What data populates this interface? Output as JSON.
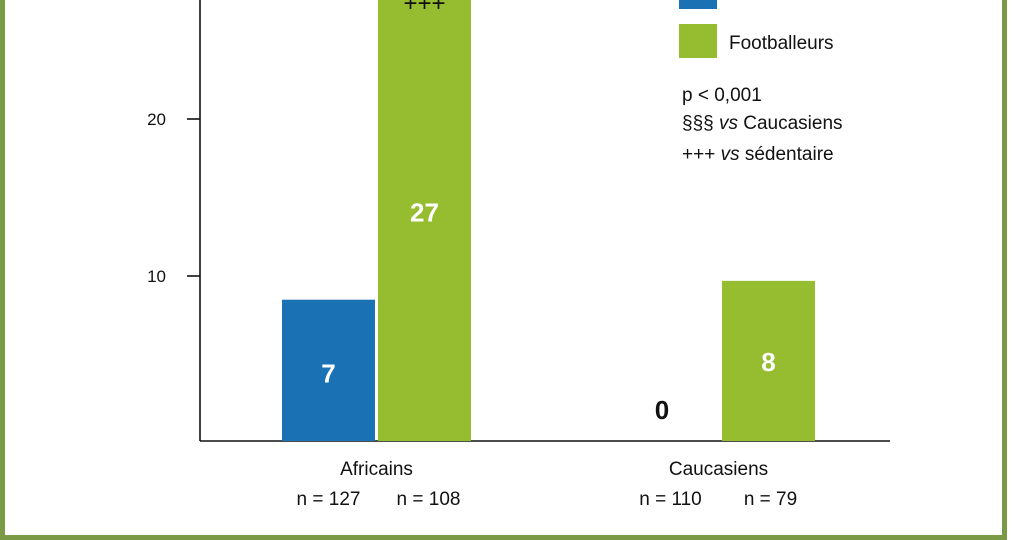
{
  "chart_data": {
    "type": "bar",
    "categories": [
      "Africains",
      "Caucasiens"
    ],
    "sample_sizes": [
      [
        "n = 127",
        "n = 108"
      ],
      [
        "n = 110",
        "n = 79"
      ]
    ],
    "series": [
      {
        "values": [
          7,
          0
        ],
        "color": "#1a72b4"
      },
      {
        "name": "Footballeurs",
        "values": [
          27,
          8
        ],
        "color": "#96bc2f"
      }
    ],
    "bar_heights": [
      [
        9,
        0
      ],
      [
        28.2,
        10.2
      ]
    ],
    "yticks": [
      10,
      20
    ],
    "ylim": [
      0,
      30
    ],
    "grid": false,
    "legend_position": "top-right",
    "annotations": {
      "marks": [
        "+++"
      ],
      "notes": [
        "p < 0,001",
        "§§§ vs Caucasiens",
        "+++ vs sédentaire"
      ]
    }
  }
}
